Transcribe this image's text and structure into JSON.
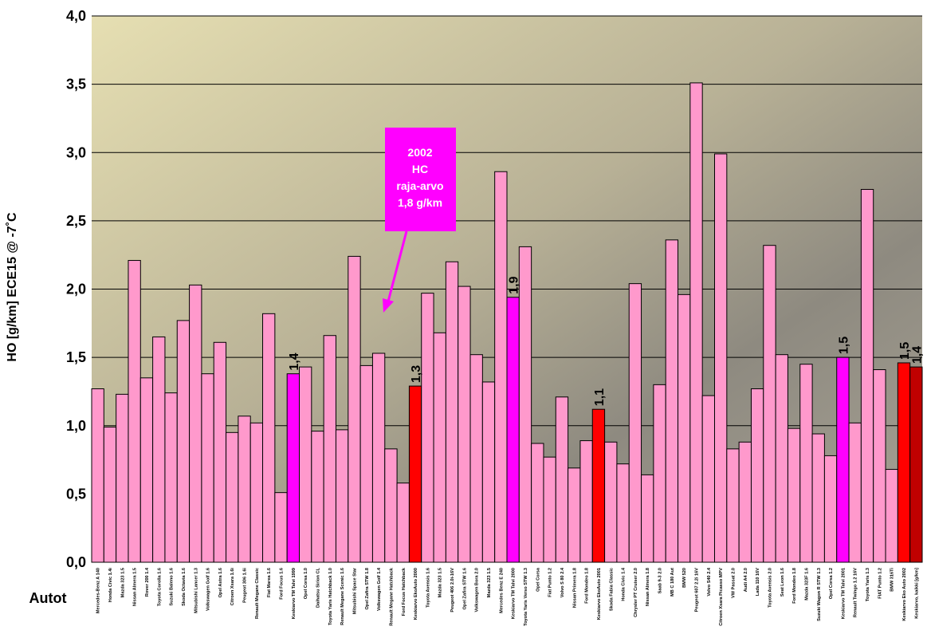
{
  "chart_data": {
    "type": "bar",
    "y_label": "HO [g/km] ECE15 @ -7˚C",
    "x_label": "Autot",
    "annotation": [
      "2002",
      "HC",
      "raja-arvo",
      "1,8 g/km"
    ],
    "categories": [
      "Mercedes-Benz A 140",
      "Honda Civic 1.4i",
      "Mazda 323 1.5",
      "Nissan Almera 1.5",
      "Rover 200 1.4",
      "Toyota Corolla 1.6",
      "Suzuki Baleno 1.6",
      "Skoda Octavia 1.6",
      "Mitsubishi Lancer 1.3",
      "Volkswagen Golf 1.6",
      "Opel Astra 1.6",
      "Citroen Xsara 1.6i",
      "Peugeot 306 1.6i",
      "Renault Megane Classic",
      "Fiat Marea 1.6",
      "Ford Focus 1.6",
      "Keskiarvo TM Talvi 1999",
      "Opel Corsa 1.0",
      "Daihatsu Sirion CL",
      "Toyota Yaris Hatchback 1.0",
      "Renault Megane Scenic 1.6",
      "Mitsubishi Space Star",
      "Opel Zafira STW 1.8",
      "Volkswagen Golf 1.4",
      "Renault Megane Hatchback",
      "Ford Focus Hatchback",
      "Keskiarvo EkoAuto 2000",
      "Toyota Avensis 1.6",
      "Mazda 323 1.5",
      "Peugeot 406 2.0i-16V",
      "Opel Zafira STW 1.6",
      "Volkswagen Bora 2.0",
      "Mazda 323 1.5",
      "Mercedes Benz E 240",
      "Keskiarvo TM Talvi 2000",
      "Toyota Yaris Verso STW 1.3",
      "Opel Corsa",
      "Fiat Punto 1.2",
      "Volvo S 80 2.4",
      "Nissan Primera 1.8",
      "Ford Mondeo 1.8",
      "Keskiarvo EkoAuto 2001",
      "Skoda Fabia Classic",
      "Honda Civic 1.4",
      "Chrysler PT Cruiser 2.0",
      "Nissan Almera 1.8",
      "Saab 9-3 2.0",
      "MB C 180 Aut",
      "BMW 520",
      "Peugeot 607 2.2i 16V",
      "Volvo S40 2.4",
      "Citroen Xsara Picasso MPV",
      "VW Passat 2.0",
      "Audi A4 2.0",
      "Lada 110 16V",
      "Toyota Avensis 2.0",
      "Seat Leon 1.6",
      "Ford Mondeo 1.8",
      "Mazda 323F 1.6",
      "Suzuki Wagon R STW 1.3",
      "Opel Corsa 1.2",
      "Keskiarvo TM Talvi 2001",
      "Renault Twingo 1.2 16V",
      "Toyota Yaris 1.3",
      "FIAT Punto 1.2",
      "BMW 316Ti",
      "Keskiarvo Eko Auto 2002",
      "Keskiarvo, kaikki [g/km]"
    ],
    "values": [
      1.27,
      0.99,
      1.23,
      2.21,
      1.35,
      1.65,
      1.24,
      1.77,
      2.03,
      1.38,
      1.61,
      0.95,
      1.07,
      1.02,
      1.82,
      0.51,
      1.38,
      1.43,
      0.96,
      1.66,
      0.97,
      2.24,
      1.44,
      1.53,
      0.83,
      0.58,
      1.29,
      1.97,
      1.68,
      2.2,
      2.02,
      1.52,
      1.32,
      2.86,
      1.94,
      2.31,
      0.87,
      0.77,
      1.21,
      0.69,
      0.89,
      1.12,
      0.88,
      0.72,
      2.04,
      0.64,
      1.3,
      2.36,
      1.96,
      3.51,
      1.22,
      2.99,
      0.83,
      0.88,
      1.27,
      2.32,
      1.52,
      0.98,
      1.45,
      0.94,
      0.78,
      1.5,
      1.02,
      2.73,
      1.41,
      0.68,
      1.46,
      1.43
    ],
    "value_labels": [
      null,
      null,
      null,
      null,
      null,
      null,
      null,
      null,
      null,
      null,
      null,
      null,
      null,
      null,
      null,
      null,
      "1,4",
      null,
      null,
      null,
      null,
      null,
      null,
      null,
      null,
      null,
      "1,3",
      null,
      null,
      null,
      null,
      null,
      null,
      null,
      "1,9",
      null,
      null,
      null,
      null,
      null,
      null,
      "1,1",
      null,
      null,
      null,
      null,
      null,
      null,
      null,
      null,
      null,
      null,
      null,
      null,
      null,
      null,
      null,
      null,
      null,
      null,
      null,
      "1,5",
      null,
      null,
      null,
      null,
      "1,5",
      "1,4"
    ],
    "colors": [
      "#ff99cc",
      "#ff99cc",
      "#ff99cc",
      "#ff99cc",
      "#ff99cc",
      "#ff99cc",
      "#ff99cc",
      "#ff99cc",
      "#ff99cc",
      "#ff99cc",
      "#ff99cc",
      "#ff99cc",
      "#ff99cc",
      "#ff99cc",
      "#ff99cc",
      "#ff99cc",
      "#ff00ff",
      "#ff99cc",
      "#ff99cc",
      "#ff99cc",
      "#ff99cc",
      "#ff99cc",
      "#ff99cc",
      "#ff99cc",
      "#ff99cc",
      "#ff99cc",
      "#ff0000",
      "#ff99cc",
      "#ff99cc",
      "#ff99cc",
      "#ff99cc",
      "#ff99cc",
      "#ff99cc",
      "#ff99cc",
      "#ff00ff",
      "#ff99cc",
      "#ff99cc",
      "#ff99cc",
      "#ff99cc",
      "#ff99cc",
      "#ff99cc",
      "#ff0000",
      "#ff99cc",
      "#ff99cc",
      "#ff99cc",
      "#ff99cc",
      "#ff99cc",
      "#ff99cc",
      "#ff99cc",
      "#ff99cc",
      "#ff99cc",
      "#ff99cc",
      "#ff99cc",
      "#ff99cc",
      "#ff99cc",
      "#ff99cc",
      "#ff99cc",
      "#ff99cc",
      "#ff99cc",
      "#ff99cc",
      "#ff99cc",
      "#ff00ff",
      "#ff99cc",
      "#ff99cc",
      "#ff99cc",
      "#ff99cc",
      "#ff0000",
      "#c00000"
    ],
    "ylim": [
      0,
      4
    ],
    "yticks": [
      {
        "value": 0,
        "label": "0,0"
      },
      {
        "value": 0.5,
        "label": "0,5"
      },
      {
        "value": 1,
        "label": "1,0"
      },
      {
        "value": 1.5,
        "label": "1,5"
      },
      {
        "value": 2,
        "label": "2,0"
      },
      {
        "value": 2.5,
        "label": "2,5"
      },
      {
        "value": 3,
        "label": "3,0"
      },
      {
        "value": 3.5,
        "label": "3,5"
      },
      {
        "value": 4,
        "label": "4,0"
      }
    ],
    "grid": true
  }
}
